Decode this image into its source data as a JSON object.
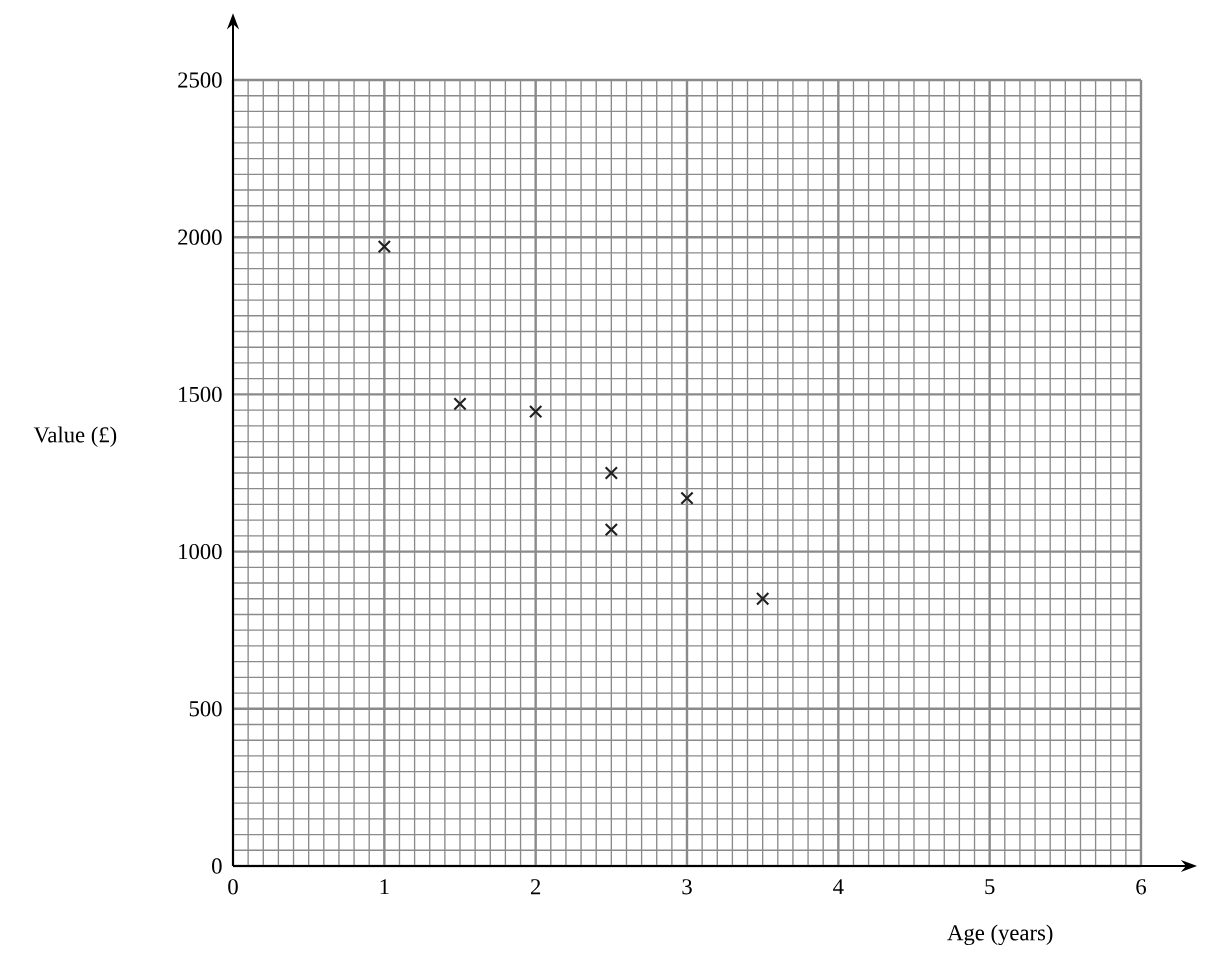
{
  "chart_data": {
    "type": "scatter",
    "xlabel": "Age (years)",
    "ylabel": "Value (£)",
    "x": [
      1,
      1.5,
      2,
      2.5,
      2.5,
      3,
      3.5
    ],
    "values": [
      1970,
      1470,
      1445,
      1250,
      1070,
      1170,
      850
    ],
    "color": "#231f20",
    "marker": "cross",
    "grid": true,
    "xlim": [
      0,
      6
    ],
    "ylim": [
      0,
      2500
    ],
    "xticks": [
      0,
      1,
      2,
      3,
      4,
      5,
      6
    ],
    "yticks": [
      0,
      500,
      1000,
      1500,
      2000,
      2500
    ]
  }
}
